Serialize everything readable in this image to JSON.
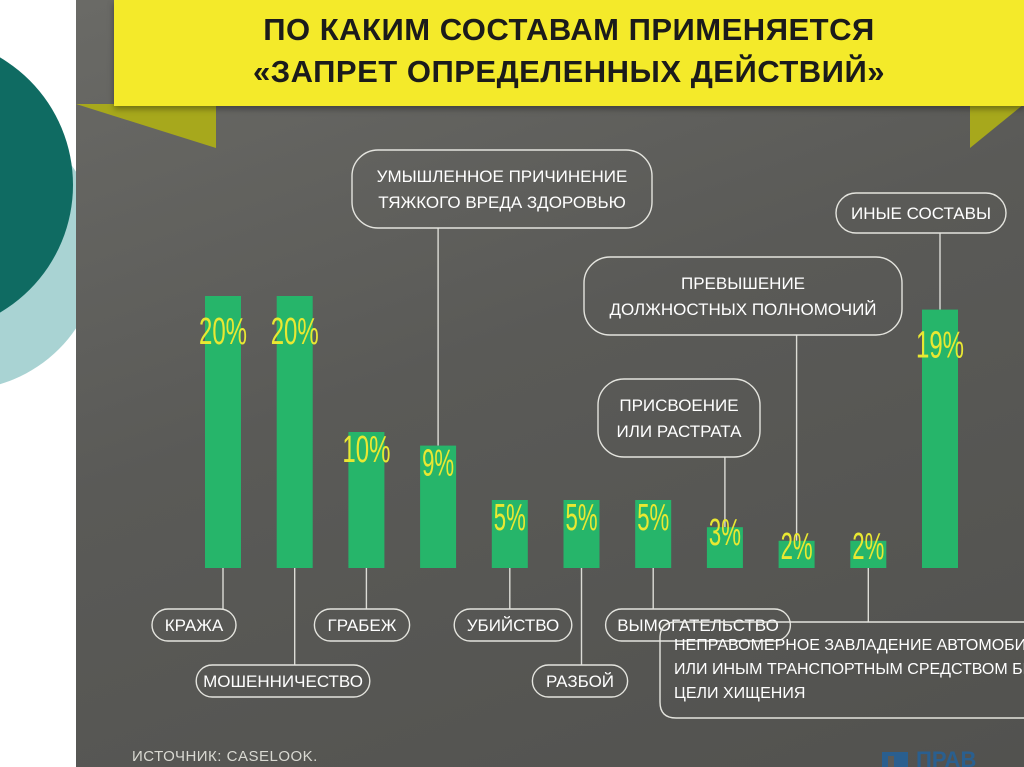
{
  "header": {
    "title_line1": "ПО КАКИМ СОСТАВАМ ПРИМЕНЯЕТСЯ",
    "title_line2": "«ЗАПРЕТ ОПРЕДЕЛЕННЫХ ДЕЙСТВИЙ»"
  },
  "footer": {
    "source": "ИСТОЧНИК: CASELOOK.",
    "logo_text": "ПРАВ"
  },
  "colors": {
    "bar": "#26b56a",
    "value_label": "#e9e832",
    "banner": "#f4ea2a",
    "panel": "#5a5a57",
    "callout_text": "#ffffff"
  },
  "chart_data": {
    "type": "bar",
    "title": "ПО КАКИМ СОСТАВАМ ПРИМЕНЯЕТСЯ «ЗАПРЕТ ОПРЕДЕЛЕННЫХ ДЕЙСТВИЙ»",
    "unit": "%",
    "ylim": [
      0,
      20
    ],
    "grid": false,
    "legend": "none",
    "categories": [
      {
        "value": 20,
        "label_text": "20%",
        "lines": [
          "КРАЖА"
        ],
        "position": "below"
      },
      {
        "value": 20,
        "label_text": "20%",
        "lines": [
          "МОШЕННИЧЕСТВО"
        ],
        "position": "below"
      },
      {
        "value": 10,
        "label_text": "10%",
        "lines": [
          "ГРАБЕЖ"
        ],
        "position": "below"
      },
      {
        "value": 9,
        "label_text": "9%",
        "lines": [
          "УМЫШЛЕННОЕ ПРИЧИНЕНИЕ",
          "ТЯЖКОГО ВРЕДА ЗДОРОВЬЮ"
        ],
        "position": "above"
      },
      {
        "value": 5,
        "label_text": "5%",
        "lines": [
          "УБИЙСТВО"
        ],
        "position": "below"
      },
      {
        "value": 5,
        "label_text": "5%",
        "lines": [
          "РАЗБОЙ"
        ],
        "position": "below"
      },
      {
        "value": 5,
        "label_text": "5%",
        "lines": [
          "ВЫМОГАТЕЛЬСТВО"
        ],
        "position": "below"
      },
      {
        "value": 3,
        "label_text": "3%",
        "lines": [
          "ПРИСВОЕНИЕ",
          "ИЛИ РАСТРАТА"
        ],
        "position": "above"
      },
      {
        "value": 2,
        "label_text": "2%",
        "lines": [
          "ПРЕВЫШЕНИЕ",
          "ДОЛЖНОСТНЫХ ПОЛНОМОЧИЙ"
        ],
        "position": "above"
      },
      {
        "value": 2,
        "label_text": "2%",
        "lines": [
          "НЕПРАВОМЕРНОЕ ЗАВЛАДЕНИЕ АВТОМОБИЛЕМ",
          "ИЛИ ИНЫМ ТРАНСПОРТНЫМ СРЕДСТВОМ БЕЗ",
          "ЦЕЛИ ХИЩЕНИЯ"
        ],
        "position": "below"
      },
      {
        "value": 19,
        "label_text": "19%",
        "lines": [
          "ИНЫЕ СОСТАВЫ"
        ],
        "position": "above"
      }
    ]
  }
}
